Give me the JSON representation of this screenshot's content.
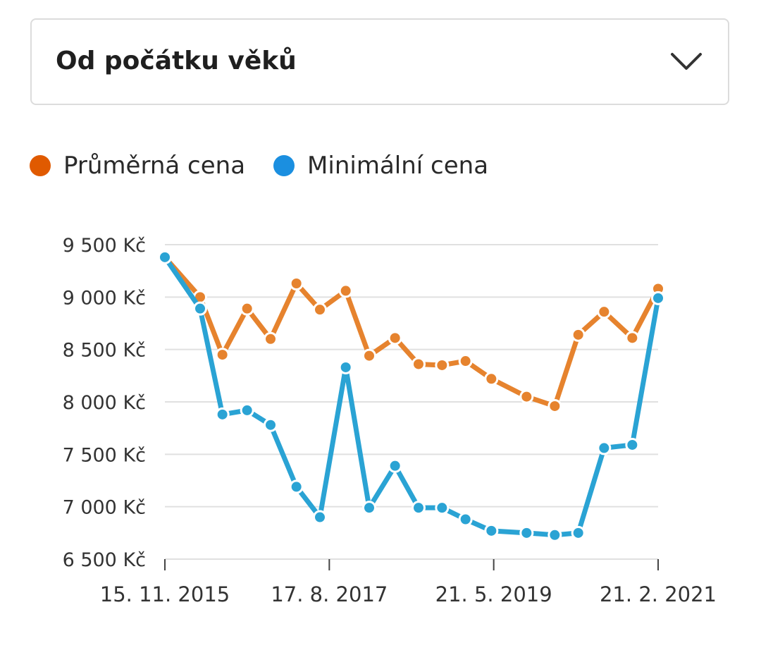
{
  "dropdown": {
    "label": "Od počátku věků"
  },
  "colors": {
    "avg": "#e6832e",
    "avg_legend": "#e05a00",
    "min": "#2aa3d4",
    "min_legend": "#1b8fe0",
    "grid": "#e0e0e0"
  },
  "chart_data": {
    "type": "line",
    "title": "",
    "ylim": [
      6500,
      9500
    ],
    "yticks": [
      9500,
      9000,
      8500,
      8000,
      7500,
      7000,
      6500
    ],
    "ytick_labels": [
      "9 500 Kč",
      "9 000 Kč",
      "8 500 Kč",
      "8 000 Kč",
      "7 500 Kč",
      "7 000 Kč",
      "6 500 Kč"
    ],
    "xticks": [
      0,
      7,
      14,
      21
    ],
    "xtick_labels": [
      "15. 11. 2015",
      "17. 8. 2017",
      "21. 5. 2019",
      "21. 2. 2021"
    ],
    "x": [
      0,
      1.5,
      2.45,
      3.5,
      4.5,
      5.6,
      6.6,
      7.7,
      8.7,
      9.8,
      10.8,
      11.8,
      12.8,
      13.9,
      15.4,
      16.6,
      17.6,
      18.7,
      19.9,
      21
    ],
    "series": [
      {
        "name": "Průměrná cena",
        "legend": "Průměrná cena",
        "values": [
          9380,
          9000,
          8450,
          8890,
          8600,
          9130,
          8880,
          9060,
          8440,
          8610,
          8360,
          8350,
          8390,
          8220,
          8050,
          7960,
          8640,
          8860,
          8610,
          9080
        ]
      },
      {
        "name": "Minimální cena",
        "legend": "Minimální cena",
        "values": [
          9380,
          8890,
          7880,
          7920,
          7780,
          7190,
          6900,
          8330,
          6990,
          7390,
          6990,
          6990,
          6880,
          6770,
          6750,
          6730,
          6750,
          7560,
          7590,
          8990
        ]
      }
    ]
  }
}
